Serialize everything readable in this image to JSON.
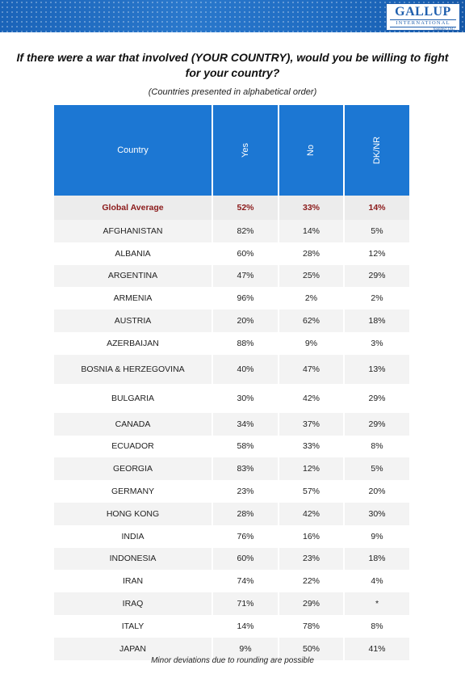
{
  "header": {
    "logo_name": "GALLUP",
    "logo_sub": "INTERNATIONAL",
    "logo_founded": "founded 1947",
    "brand_color": "#1c77d3"
  },
  "question": "If there were a war that involved (YOUR COUNTRY), would you be willing to fight for your country?",
  "subtitle": "(Countries presented in alphabetical order)",
  "table": {
    "columns": [
      "Country",
      "Yes",
      "No",
      "DK/NR"
    ],
    "average": {
      "country": "Global Average",
      "yes": "52%",
      "no": "33%",
      "dk": "14%"
    },
    "rows": [
      {
        "country": "AFGHANISTAN",
        "yes": "82%",
        "no": "14%",
        "dk": "5%"
      },
      {
        "country": "ALBANIA",
        "yes": "60%",
        "no": "28%",
        "dk": "12%"
      },
      {
        "country": "ARGENTINA",
        "yes": "47%",
        "no": "25%",
        "dk": "29%"
      },
      {
        "country": "ARMENIA",
        "yes": "96%",
        "no": "2%",
        "dk": "2%"
      },
      {
        "country": "AUSTRIA",
        "yes": "20%",
        "no": "62%",
        "dk": "18%"
      },
      {
        "country": "AZERBAIJAN",
        "yes": "88%",
        "no": "9%",
        "dk": "3%"
      },
      {
        "country": "BOSNIA & HERZEGOVINA",
        "yes": "40%",
        "no": "47%",
        "dk": "13%"
      },
      {
        "country": "BULGARIA",
        "yes": "30%",
        "no": "42%",
        "dk": "29%"
      },
      {
        "country": "CANADA",
        "yes": "34%",
        "no": "37%",
        "dk": "29%"
      },
      {
        "country": "ECUADOR",
        "yes": "58%",
        "no": "33%",
        "dk": "8%"
      },
      {
        "country": "GEORGIA",
        "yes": "83%",
        "no": "12%",
        "dk": "5%"
      },
      {
        "country": "GERMANY",
        "yes": "23%",
        "no": "57%",
        "dk": "20%"
      },
      {
        "country": "HONG KONG",
        "yes": "28%",
        "no": "42%",
        "dk": "30%"
      },
      {
        "country": "INDIA",
        "yes": "76%",
        "no": "16%",
        "dk": "9%"
      },
      {
        "country": "INDONESIA",
        "yes": "60%",
        "no": "23%",
        "dk": "18%"
      },
      {
        "country": "IRAN",
        "yes": "74%",
        "no": "22%",
        "dk": "4%"
      },
      {
        "country": "IRAQ",
        "yes": "71%",
        "no": "29%",
        "dk": "*"
      },
      {
        "country": "ITALY",
        "yes": "14%",
        "no": "78%",
        "dk": "8%"
      },
      {
        "country": "JAPAN",
        "yes": "9%",
        "no": "50%",
        "dk": "41%"
      }
    ]
  },
  "footnote": "Minor deviations due to rounding are possible"
}
